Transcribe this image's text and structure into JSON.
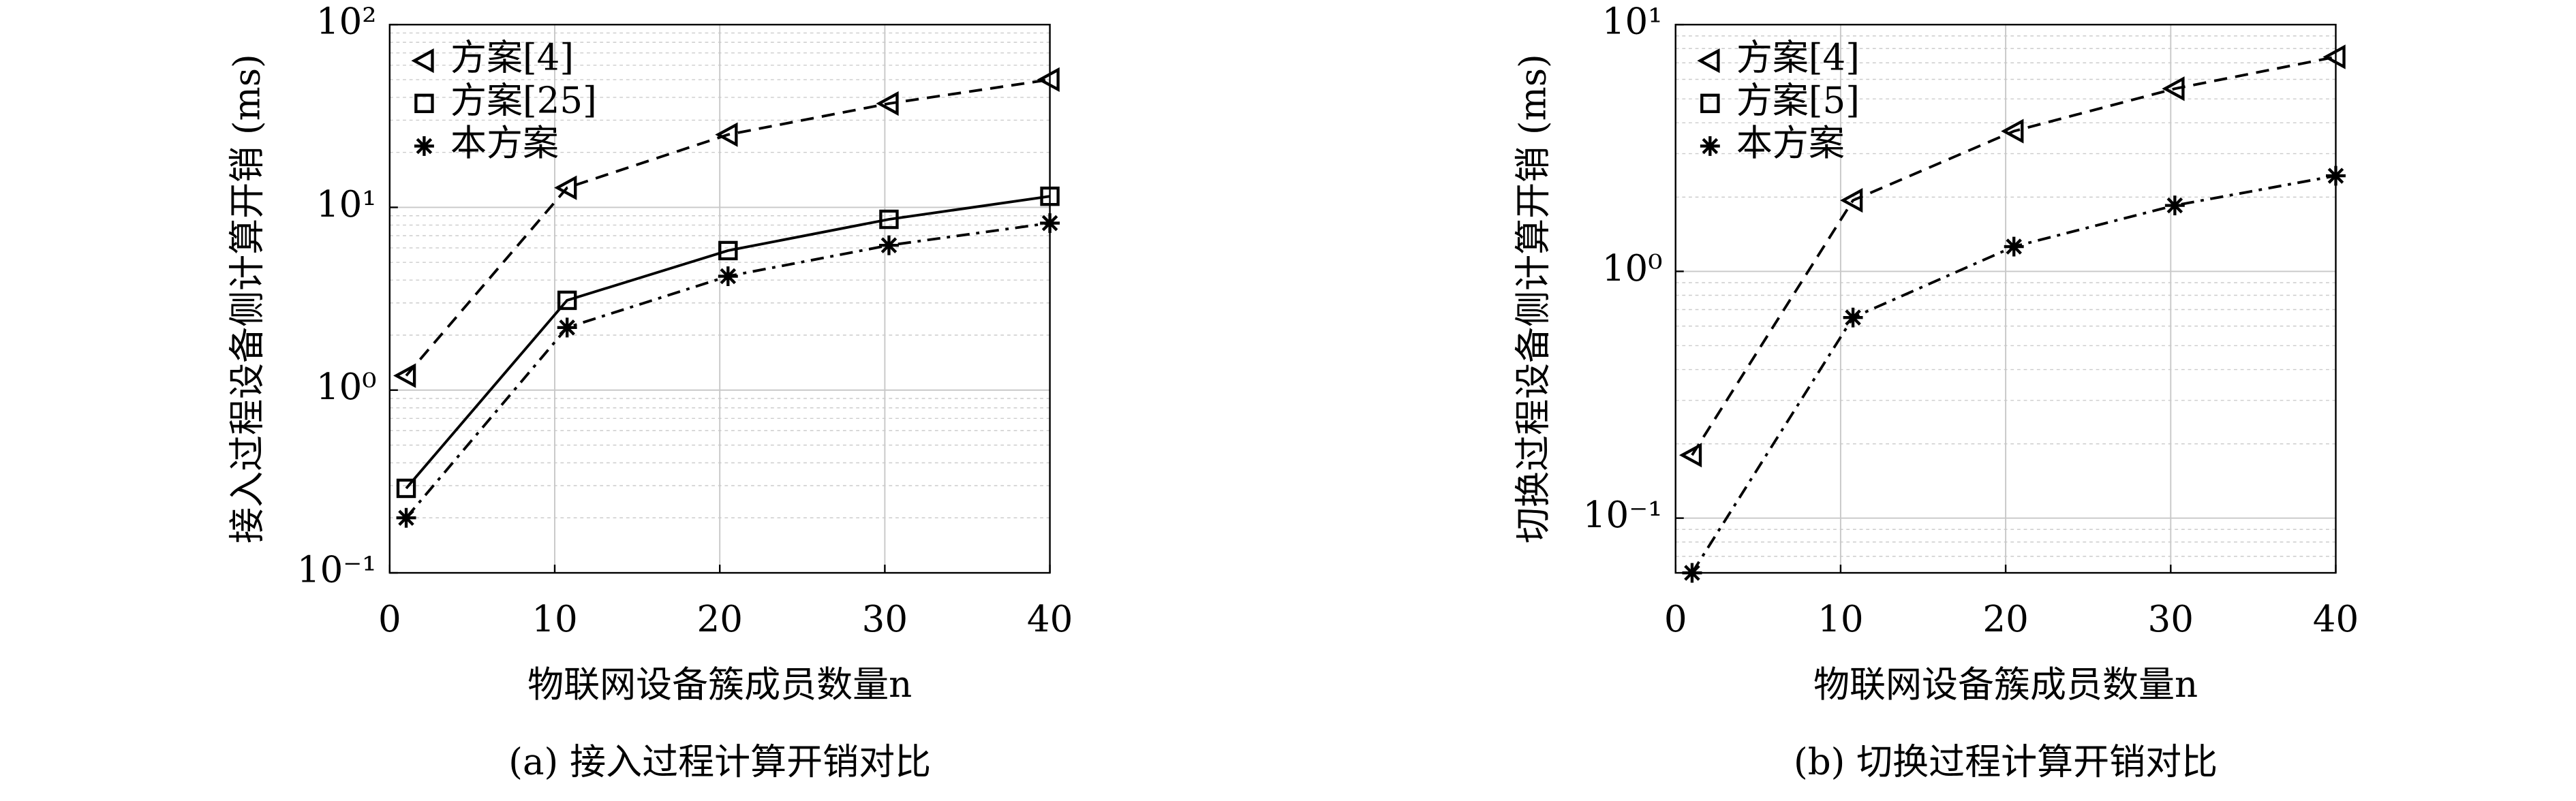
{
  "chart_data": [
    {
      "type": "line",
      "log_y": true,
      "grid": true,
      "legend": "upper left",
      "ylabel": "接入过程设备侧计算开销 (ms)",
      "xlabel": "物联网设备簇成员数量n",
      "caption": "(a) 接入过程计算开销对比",
      "x": [
        1,
        10.75,
        20.5,
        30.25,
        40
      ],
      "xlim": [
        0,
        40
      ],
      "xticks": [
        0,
        10,
        20,
        30,
        40
      ],
      "ylim": [
        0.1,
        100
      ],
      "yticks": [
        {
          "value": 0.1,
          "label": "10⁻¹"
        },
        {
          "value": 1,
          "label": "10⁰"
        },
        {
          "value": 10,
          "label": "10¹"
        },
        {
          "value": 100,
          "label": "10²"
        }
      ],
      "series": [
        {
          "name": "方案[4]",
          "color": "#000000",
          "marker": "triangle-left",
          "linestyle": "dashed",
          "values": [
            1.2,
            12.8,
            25,
            37,
            50
          ]
        },
        {
          "name": "方案[25]",
          "color": "#000000",
          "marker": "square",
          "linestyle": "solid",
          "values": [
            0.29,
            3.1,
            5.8,
            8.6,
            11.5
          ]
        },
        {
          "name": "本方案",
          "color": "#000000",
          "marker": "asterisk",
          "linestyle": "dashdot",
          "values": [
            0.2,
            2.2,
            4.2,
            6.2,
            8.2
          ]
        }
      ]
    },
    {
      "type": "line",
      "log_y": true,
      "grid": true,
      "legend": "upper left",
      "ylabel": "切换过程设备侧计算开销 (ms)",
      "xlabel": "物联网设备簇成员数量n",
      "caption": "(b) 切换过程计算开销对比",
      "x": [
        1,
        10.75,
        20.5,
        30.25,
        40
      ],
      "xlim": [
        0,
        40
      ],
      "xticks": [
        0,
        10,
        20,
        30,
        40
      ],
      "ylim": [
        0.06,
        10
      ],
      "yticks": [
        {
          "value": 0.1,
          "label": "10⁻¹"
        },
        {
          "value": 1,
          "label": "10⁰"
        },
        {
          "value": 10,
          "label": "10¹"
        }
      ],
      "series": [
        {
          "name": "方案[4]",
          "color": "#000000",
          "marker": "triangle-left",
          "linestyle": "dashed",
          "values": [
            0.18,
            1.94,
            3.7,
            5.5,
            7.4
          ]
        },
        {
          "name": "方案[5]",
          "color": "#000000",
          "marker": "square",
          "linestyle": "solid",
          "values": [
            null,
            null,
            null,
            null,
            null
          ]
        },
        {
          "name": "本方案",
          "color": "#000000",
          "marker": "asterisk",
          "linestyle": "dashdot",
          "values": [
            0.06,
            0.65,
            1.26,
            1.85,
            2.44
          ]
        }
      ]
    }
  ]
}
